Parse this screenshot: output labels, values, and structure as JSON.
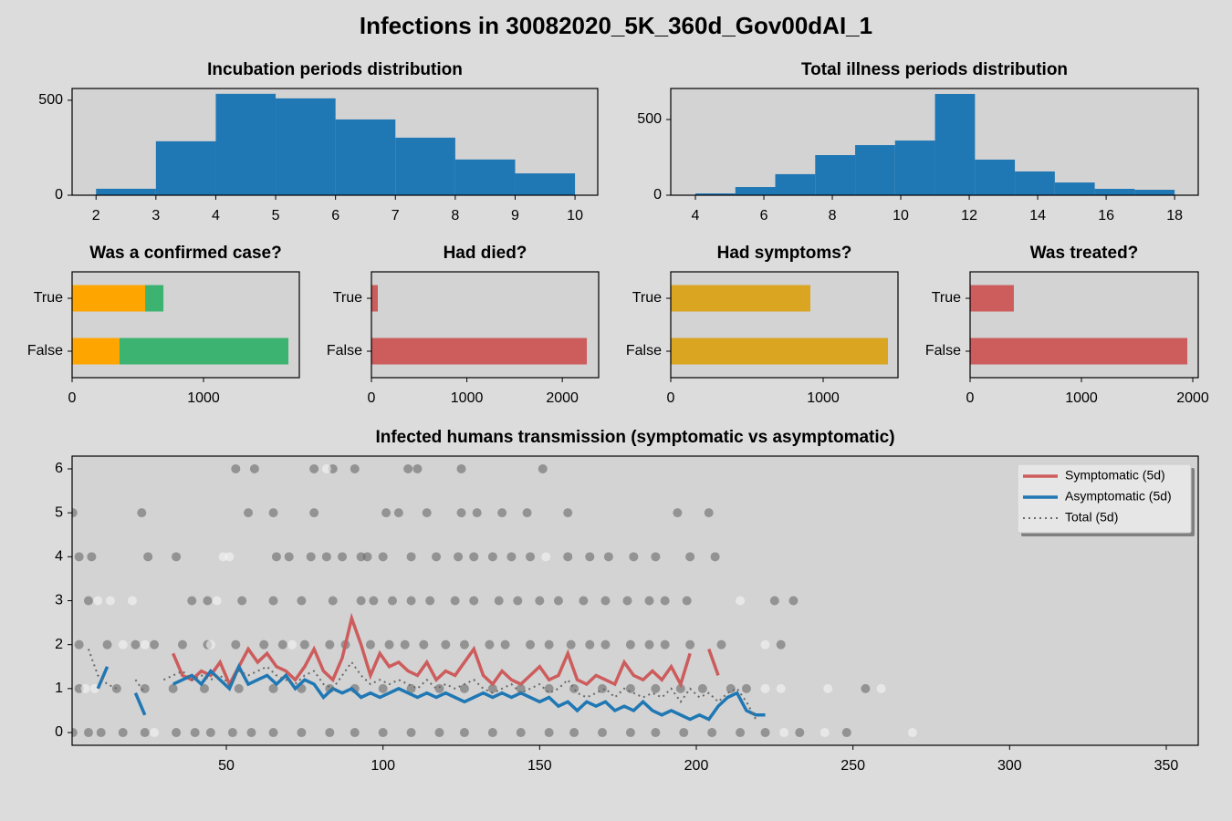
{
  "title": "Infections in 30082020_5K_360d_Gov00dAI_1",
  "chart_data": [
    {
      "type": "histogram",
      "title": "Incubation periods distribution",
      "bins": [
        2,
        3,
        4,
        5,
        6,
        7,
        8,
        9,
        10
      ],
      "values": [
        34,
        284,
        534,
        510,
        399,
        303,
        188,
        115
      ],
      "color": "#1f77b4",
      "xlim": [
        1.6,
        10.38
      ],
      "xticks": [
        2,
        3,
        4,
        5,
        6,
        7,
        8,
        9,
        10
      ],
      "ylim": [
        0,
        562
      ],
      "yticks": [
        0,
        500
      ]
    },
    {
      "type": "histogram",
      "title": "Total illness periods distribution",
      "bins": [
        4,
        5.167,
        6.333,
        7.5,
        8.667,
        9.833,
        11,
        12.167,
        13.333,
        14.5,
        15.667,
        16.833,
        18
      ],
      "values": [
        12,
        54,
        139,
        265,
        331,
        361,
        669,
        235,
        157,
        84,
        42,
        36
      ],
      "color": "#1f77b4",
      "xlim": [
        3.28,
        18.69
      ],
      "xticks": [
        4,
        6,
        8,
        10,
        12,
        14,
        16,
        18
      ],
      "ylim": [
        0,
        705
      ],
      "yticks": [
        0,
        500
      ]
    },
    {
      "type": "hbar",
      "title": "Was a confirmed case?",
      "categories": [
        "True",
        "False"
      ],
      "series": [
        {
          "color": "#ffa500",
          "values": [
            556,
            361
          ]
        },
        {
          "color": "#3cb371",
          "values": [
            139,
            1285
          ]
        }
      ],
      "xlim": [
        0,
        1729
      ],
      "xticks": [
        0,
        1000
      ]
    },
    {
      "type": "hbar",
      "title": "Had died?",
      "categories": [
        "True",
        "False"
      ],
      "series": [
        {
          "color": "#cd5c5c",
          "values": [
            67,
            2257
          ]
        }
      ],
      "xlim": [
        0,
        2381
      ],
      "xticks": [
        0,
        1000,
        2000
      ]
    },
    {
      "type": "hbar",
      "title": "Had symptoms?",
      "categories": [
        "True",
        "False"
      ],
      "series": [
        {
          "color": "#daa520",
          "values": [
            916,
            1425
          ]
        }
      ],
      "xlim": [
        0,
        1491
      ],
      "xticks": [
        0,
        1000
      ]
    },
    {
      "type": "hbar",
      "title": "Was treated?",
      "categories": [
        "True",
        "False"
      ],
      "series": [
        {
          "color": "#cd5c5c",
          "values": [
            393,
            1951
          ]
        }
      ],
      "xlim": [
        0,
        2049
      ],
      "xticks": [
        0,
        1000,
        2000
      ]
    },
    {
      "type": "scatter",
      "title": "Infected humans transmission (symptomatic vs asymptomatic)",
      "xlim": [
        0.77,
        360.2
      ],
      "xticks": [
        50,
        100,
        150,
        200,
        250,
        300,
        350
      ],
      "ylim": [
        -0.29,
        6.29
      ],
      "yticks": [
        0,
        1,
        2,
        3,
        4,
        5,
        6
      ],
      "legend": "upper right",
      "x": [
        6,
        9,
        12,
        15,
        18,
        21,
        24,
        27,
        30,
        33,
        36,
        39,
        42,
        45,
        48,
        51,
        54,
        57,
        60,
        63,
        66,
        69,
        72,
        75,
        78,
        81,
        84,
        87,
        90,
        93,
        96,
        99,
        102,
        105,
        108,
        111,
        114,
        117,
        120,
        123,
        126,
        129,
        132,
        135,
        138,
        141,
        144,
        147,
        150,
        153,
        156,
        159,
        162,
        165,
        168,
        171,
        174,
        177,
        180,
        183,
        186,
        189,
        192,
        195,
        198,
        201,
        204,
        207,
        210,
        213,
        216,
        219,
        222
      ],
      "series": [
        {
          "type": "scatter",
          "color": "#696969",
          "x": [
            53,
            59,
            78,
            84,
            91,
            108,
            111,
            125,
            151,
            1,
            23,
            57,
            65,
            78,
            101,
            105,
            114,
            125,
            130,
            138,
            146,
            159,
            194,
            204,
            3,
            7,
            25,
            34,
            66,
            70,
            77,
            82,
            87,
            93,
            95,
            100,
            109,
            117,
            124,
            129,
            135,
            141,
            147,
            159,
            166,
            172,
            180,
            187,
            198,
            206,
            6,
            39,
            44,
            55,
            65,
            74,
            84,
            93,
            97,
            103,
            109,
            115,
            123,
            129,
            137,
            143,
            150,
            156,
            164,
            171,
            178,
            185,
            190,
            197,
            225,
            231,
            3,
            12,
            21,
            27,
            36,
            44,
            53,
            62,
            68,
            75,
            83,
            88,
            96,
            102,
            107,
            113,
            120,
            126,
            134,
            139,
            147,
            153,
            160,
            166,
            171,
            179,
            185,
            190,
            198,
            208,
            227,
            3,
            15,
            24,
            33,
            43,
            54,
            65,
            74,
            83,
            91,
            100,
            109,
            118,
            126,
            135,
            144,
            153,
            161,
            170,
            179,
            187,
            195,
            202,
            211,
            216,
            254,
            1,
            6,
            10,
            17,
            24,
            34,
            40,
            45,
            52,
            58,
            65,
            74,
            83,
            91,
            100,
            109,
            118,
            126,
            135,
            144,
            153,
            161,
            170,
            179,
            187,
            196,
            205,
            214,
            222,
            233,
            248
          ],
          "values": [
            6,
            6,
            6,
            6,
            6,
            6,
            6,
            6,
            6,
            5,
            5,
            5,
            5,
            5,
            5,
            5,
            5,
            5,
            5,
            5,
            5,
            5,
            5,
            5,
            4,
            4,
            4,
            4,
            4,
            4,
            4,
            4,
            4,
            4,
            4,
            4,
            4,
            4,
            4,
            4,
            4,
            4,
            4,
            4,
            4,
            4,
            4,
            4,
            4,
            4,
            3,
            3,
            3,
            3,
            3,
            3,
            3,
            3,
            3,
            3,
            3,
            3,
            3,
            3,
            3,
            3,
            3,
            3,
            3,
            3,
            3,
            3,
            3,
            3,
            3,
            3,
            2,
            2,
            2,
            2,
            2,
            2,
            2,
            2,
            2,
            2,
            2,
            2,
            2,
            2,
            2,
            2,
            2,
            2,
            2,
            2,
            2,
            2,
            2,
            2,
            2,
            2,
            2,
            2,
            2,
            2,
            2,
            1,
            1,
            1,
            1,
            1,
            1,
            1,
            1,
            1,
            1,
            1,
            1,
            1,
            1,
            1,
            1,
            1,
            1,
            1,
            1,
            1,
            1,
            1,
            1,
            1,
            1,
            0,
            0,
            0,
            0,
            0,
            0,
            0,
            0,
            0,
            0,
            0,
            0,
            0,
            0,
            0,
            0,
            0,
            0,
            0,
            0,
            0,
            0,
            0,
            0,
            0,
            0,
            0,
            0,
            0,
            0,
            0
          ]
        },
        {
          "type": "scatter",
          "color": "#f5f5f5",
          "x": [
            82,
            49,
            51,
            152,
            9,
            13,
            20,
            47,
            214,
            17,
            24,
            45,
            71,
            222,
            5,
            8,
            222,
            227,
            242,
            259,
            27,
            228,
            241,
            269
          ],
          "values": [
            6,
            4,
            4,
            4,
            3,
            3,
            3,
            3,
            3,
            2,
            2,
            2,
            2,
            2,
            1,
            1,
            1,
            1,
            1,
            1,
            0,
            0,
            0,
            0
          ]
        },
        {
          "type": "line",
          "name": "Symptomatic (5d)",
          "color": "#cd5c5c",
          "style": "solid",
          "values": [
            null,
            null,
            null,
            null,
            null,
            null,
            null,
            null,
            null,
            1.8,
            1.3,
            1.2,
            1.4,
            1.3,
            1.6,
            1.1,
            1.5,
            1.9,
            1.6,
            1.8,
            1.5,
            1.4,
            1.2,
            1.5,
            1.9,
            1.4,
            1.2,
            1.7,
            2.6,
            2.0,
            1.3,
            1.8,
            1.5,
            1.6,
            1.4,
            1.3,
            1.6,
            1.2,
            1.4,
            1.3,
            1.6,
            1.9,
            1.3,
            1.1,
            1.4,
            1.2,
            1.1,
            1.3,
            1.5,
            1.2,
            1.3,
            1.8,
            1.2,
            1.1,
            1.3,
            1.2,
            1.1,
            1.6,
            1.3,
            1.2,
            1.4,
            1.2,
            1.5,
            1.1,
            1.8,
            null,
            1.9,
            1.3,
            null,
            null,
            null,
            null,
            null
          ]
        },
        {
          "type": "line",
          "name": "Asymptomatic (5d)",
          "color": "#1f77b4",
          "style": "solid",
          "values": [
            null,
            1.0,
            1.5,
            null,
            null,
            0.9,
            0.4,
            null,
            null,
            1.1,
            1.2,
            1.3,
            1.1,
            1.4,
            1.2,
            1.0,
            1.5,
            1.1,
            1.2,
            1.3,
            1.1,
            1.3,
            1.0,
            1.2,
            1.1,
            0.8,
            1.0,
            0.9,
            1.0,
            0.8,
            0.9,
            0.8,
            0.9,
            1.0,
            0.9,
            0.8,
            0.9,
            0.8,
            0.9,
            0.8,
            0.7,
            0.8,
            0.9,
            0.8,
            0.9,
            0.8,
            0.9,
            0.8,
            0.7,
            0.8,
            0.6,
            0.7,
            0.5,
            0.7,
            0.6,
            0.7,
            0.5,
            0.6,
            0.5,
            0.7,
            0.5,
            0.4,
            0.5,
            0.4,
            0.3,
            0.4,
            0.3,
            0.6,
            0.8,
            0.9,
            0.5,
            0.4,
            0.4
          ]
        },
        {
          "type": "line",
          "name": "Total (5d)",
          "color": "#696969",
          "style": "dotted",
          "values": [
            1.9,
            1.3,
            1.1,
            1.0,
            null,
            1.2,
            0.9,
            null,
            1.2,
            1.3,
            1.4,
            1.2,
            1.3,
            1.2,
            1.3,
            1.1,
            1.4,
            1.3,
            1.4,
            1.5,
            1.3,
            1.2,
            1.1,
            1.3,
            1.4,
            1.1,
            1.0,
            1.3,
            1.6,
            1.3,
            1.1,
            1.2,
            1.1,
            1.2,
            1.1,
            1.0,
            1.2,
            1.0,
            1.1,
            1.0,
            1.1,
            1.2,
            1.0,
            0.9,
            1.0,
            1.1,
            0.9,
            1.0,
            1.1,
            0.9,
            1.0,
            1.2,
            0.9,
            0.8,
            0.9,
            1.0,
            0.8,
            1.0,
            0.9,
            0.8,
            0.9,
            0.8,
            1.0,
            0.7,
            1.0,
            0.8,
            0.9,
            0.7,
            0.9,
            1.0,
            0.7,
            0.3,
            null
          ]
        }
      ]
    }
  ]
}
